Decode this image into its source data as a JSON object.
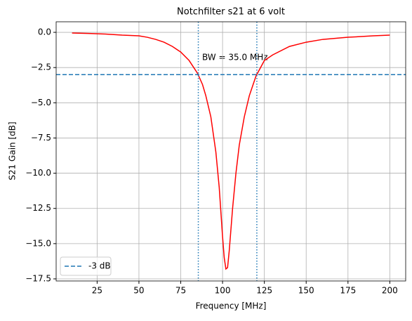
{
  "chart_data": {
    "type": "line",
    "title": "Notchfilter s21 at 6 volt",
    "x_label": "Frequency [MHz]",
    "y_label": "S21 Gain [dB]",
    "annotation": "BW = 35.0 MHz",
    "x": [
      10,
      20,
      30,
      40,
      50,
      55,
      60,
      65,
      70,
      75,
      80,
      85,
      88,
      90,
      93,
      96,
      98,
      100,
      101,
      102,
      103,
      104,
      106,
      108,
      110,
      113,
      116,
      120,
      125,
      130,
      140,
      150,
      160,
      175,
      190,
      200
    ],
    "values": [
      -0.05,
      -0.08,
      -0.12,
      -0.2,
      -0.25,
      -0.35,
      -0.5,
      -0.7,
      -1.0,
      -1.4,
      -2.0,
      -2.9,
      -3.7,
      -4.5,
      -6.0,
      -8.5,
      -11,
      -14.5,
      -16,
      -16.8,
      -16.7,
      -15.5,
      -12.5,
      -10,
      -8,
      -6,
      -4.5,
      -3.1,
      -2.0,
      -1.6,
      -1.0,
      -0.7,
      -0.5,
      -0.35,
      -0.25,
      -0.2
    ],
    "color": "#ff0000",
    "hline": {
      "name": "-3 dB",
      "value": -3,
      "color": "#1f77b4"
    },
    "vlines": [
      85.5,
      120.5
    ],
    "vline_color": "#1f77b4",
    "xlim": [
      0.5,
      209.5
    ],
    "ylim": [
      -17.65,
      0.75
    ],
    "xticks": [
      25,
      50,
      75,
      100,
      125,
      150,
      175,
      200
    ],
    "yticks": [
      {
        "value": 0,
        "label": "0.0"
      },
      {
        "value": -2.5,
        "label": "−2.5"
      },
      {
        "value": -5,
        "label": "−5.0"
      },
      {
        "value": -7.5,
        "label": "−7.5"
      },
      {
        "value": -10,
        "label": "−10.0"
      },
      {
        "value": -12.5,
        "label": "−12.5"
      },
      {
        "value": -15,
        "label": "−15.0"
      },
      {
        "value": -17.5,
        "label": "−17.5"
      }
    ],
    "grid": true,
    "legend": "lower left"
  }
}
